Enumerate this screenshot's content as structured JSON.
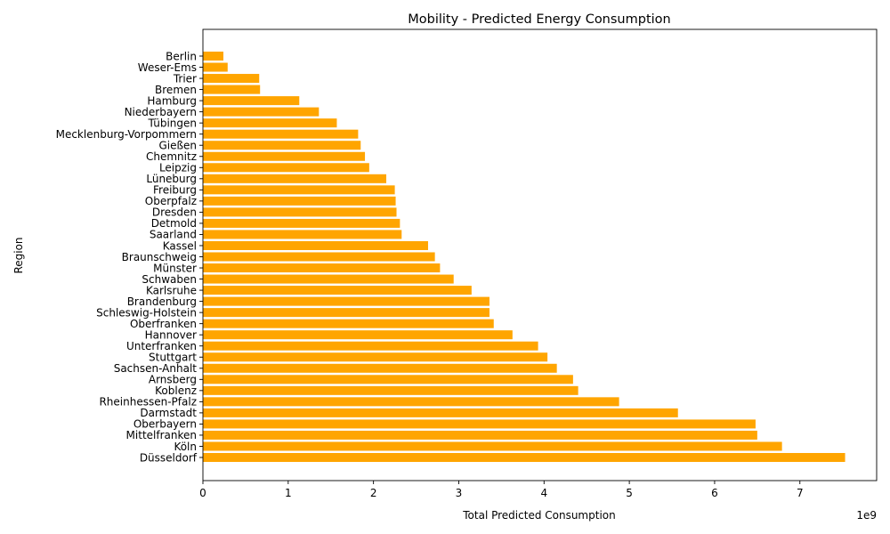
{
  "colors": {
    "bar": "#FFA500",
    "axis": "#000000",
    "background": "#ffffff"
  },
  "chart_data": {
    "type": "bar",
    "orientation": "horizontal",
    "title": "Mobility - Predicted Energy Consumption",
    "xlabel": "Total Predicted Consumption",
    "ylabel": "Region",
    "x_multiplier_label": "1e9",
    "x_tick_values": [
      0,
      1,
      2,
      3,
      4,
      5,
      6,
      7
    ],
    "x_tick_labels": [
      "0",
      "1",
      "2",
      "3",
      "4",
      "5",
      "6",
      "7"
    ],
    "xlim": [
      0,
      7.9
    ],
    "grid": false,
    "legend": "none",
    "categories": [
      "Düsseldorf",
      "Köln",
      "Mittelfranken",
      "Oberbayern",
      "Darmstadt",
      "Rheinhessen-Pfalz",
      "Koblenz",
      "Arnsberg",
      "Sachsen-Anhalt",
      "Stuttgart",
      "Unterfranken",
      "Hannover",
      "Oberfranken",
      "Schleswig-Holstein",
      "Brandenburg",
      "Karlsruhe",
      "Schwaben",
      "Münster",
      "Braunschweig",
      "Kassel",
      "Saarland",
      "Detmold",
      "Dresden",
      "Oberpfalz",
      "Freiburg",
      "Lüneburg",
      "Leipzig",
      "Chemnitz",
      "Gießen",
      "Mecklenburg-Vorpommern",
      "Tübingen",
      "Niederbayern",
      "Hamburg",
      "Bremen",
      "Trier",
      "Weser-Ems",
      "Berlin"
    ],
    "values": [
      7.53,
      6.79,
      6.5,
      6.48,
      5.57,
      4.88,
      4.4,
      4.34,
      4.15,
      4.04,
      3.93,
      3.63,
      3.41,
      3.36,
      3.36,
      3.15,
      2.94,
      2.78,
      2.72,
      2.64,
      2.33,
      2.31,
      2.27,
      2.26,
      2.25,
      2.15,
      1.95,
      1.9,
      1.85,
      1.82,
      1.57,
      1.36,
      1.13,
      0.67,
      0.66,
      0.29,
      0.24
    ]
  }
}
